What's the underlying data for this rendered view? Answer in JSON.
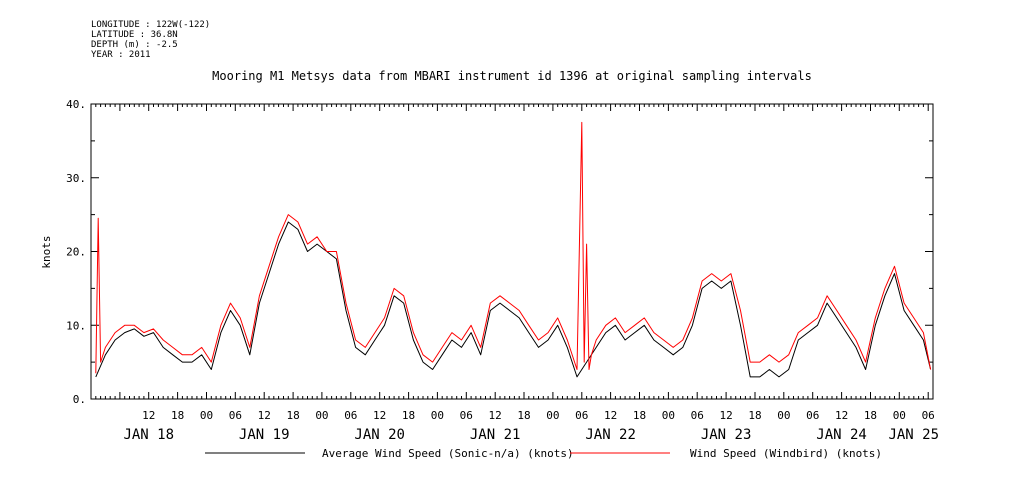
{
  "meta": {
    "longitude": "LONGITUDE : 122W(-122)",
    "latitude": "LATITUDE : 36.8N",
    "depth": "DEPTH (m) : -2.5",
    "year": "YEAR : 2011"
  },
  "chart_data": {
    "type": "line",
    "title": "Mooring M1 Metsys data from MBARI instrument id 1396 at original sampling intervals",
    "ylabel": "knots",
    "xlabel": "",
    "ylim": [
      0,
      40
    ],
    "xlim_hours": [
      408,
      583
    ],
    "y_ticks": [
      0,
      10,
      20,
      30,
      40
    ],
    "y_tick_labels": [
      "0.",
      "10.",
      "20.",
      "30.",
      "40."
    ],
    "hour_tick_labels": [
      {
        "h": 420,
        "label": "12"
      },
      {
        "h": 426,
        "label": "18"
      },
      {
        "h": 432,
        "label": "00"
      },
      {
        "h": 438,
        "label": "06"
      },
      {
        "h": 444,
        "label": "12"
      },
      {
        "h": 450,
        "label": "18"
      },
      {
        "h": 456,
        "label": "00"
      },
      {
        "h": 462,
        "label": "06"
      },
      {
        "h": 468,
        "label": "12"
      },
      {
        "h": 474,
        "label": "18"
      },
      {
        "h": 480,
        "label": "00"
      },
      {
        "h": 486,
        "label": "06"
      },
      {
        "h": 492,
        "label": "12"
      },
      {
        "h": 498,
        "label": "18"
      },
      {
        "h": 504,
        "label": "00"
      },
      {
        "h": 510,
        "label": "06"
      },
      {
        "h": 516,
        "label": "12"
      },
      {
        "h": 522,
        "label": "18"
      },
      {
        "h": 528,
        "label": "00"
      },
      {
        "h": 534,
        "label": "06"
      },
      {
        "h": 540,
        "label": "12"
      },
      {
        "h": 546,
        "label": "18"
      },
      {
        "h": 552,
        "label": "00"
      },
      {
        "h": 558,
        "label": "06"
      },
      {
        "h": 564,
        "label": "12"
      },
      {
        "h": 570,
        "label": "18"
      },
      {
        "h": 576,
        "label": "00"
      },
      {
        "h": 582,
        "label": "06"
      }
    ],
    "day_labels": [
      {
        "h": 420,
        "label": "JAN 18"
      },
      {
        "h": 444,
        "label": "JAN 19"
      },
      {
        "h": 468,
        "label": "JAN 20"
      },
      {
        "h": 492,
        "label": "JAN 21"
      },
      {
        "h": 516,
        "label": "JAN 22"
      },
      {
        "h": 540,
        "label": "JAN 23"
      },
      {
        "h": 564,
        "label": "JAN 24"
      },
      {
        "h": 579,
        "label": "JAN 25"
      }
    ],
    "series": [
      {
        "name": "Average Wind Speed (Sonic-n/a) (knots)",
        "color": "#000000",
        "x": [
          409,
          411,
          413,
          415,
          417,
          419,
          421,
          423,
          425,
          427,
          429,
          431,
          433,
          435,
          437,
          439,
          441,
          443,
          445,
          447,
          449,
          451,
          453,
          455,
          457,
          459,
          461,
          463,
          465,
          467,
          469,
          471,
          473,
          475,
          477,
          479,
          481,
          483,
          485,
          487,
          489,
          491,
          493,
          495,
          497,
          499,
          501,
          503,
          505,
          507,
          509,
          511,
          513,
          515,
          517,
          519,
          521,
          523,
          525,
          527,
          529,
          531,
          533,
          535,
          537,
          539,
          541,
          543,
          545,
          547,
          549,
          551,
          553,
          555,
          557,
          559,
          561,
          563,
          565,
          567,
          569,
          571,
          573,
          575,
          577,
          579,
          581,
          582.5
        ],
        "y": [
          3,
          6,
          8,
          9,
          9.5,
          8.5,
          9,
          7,
          6,
          5,
          5,
          6,
          4,
          9,
          12,
          10,
          6,
          13,
          17,
          21,
          24,
          23,
          20,
          21,
          20,
          19,
          12,
          7,
          6,
          8,
          10,
          14,
          13,
          8,
          5,
          4,
          6,
          8,
          7,
          9,
          6,
          12,
          13,
          12,
          11,
          9,
          7,
          8,
          10,
          7,
          3,
          5,
          7,
          9,
          10,
          8,
          9,
          10,
          8,
          7,
          6,
          7,
          10,
          15,
          16,
          15,
          16,
          10,
          3,
          3,
          4,
          3,
          4,
          8,
          9,
          10,
          13,
          11,
          9,
          7,
          4,
          10,
          14,
          17,
          12,
          10,
          8,
          4
        ]
      },
      {
        "name": "Wind Speed (Windbird) (knots)",
        "color": "#ff0000",
        "x": [
          409,
          409.5,
          410,
          411,
          413,
          415,
          417,
          419,
          421,
          423,
          425,
          427,
          429,
          431,
          433,
          435,
          437,
          439,
          441,
          443,
          445,
          447,
          449,
          451,
          453,
          455,
          457,
          459,
          461,
          463,
          465,
          467,
          469,
          471,
          473,
          475,
          477,
          479,
          481,
          483,
          485,
          487,
          489,
          491,
          493,
          495,
          497,
          499,
          501,
          503,
          505,
          507,
          509,
          510,
          510.5,
          511,
          511.5,
          512,
          513,
          515,
          517,
          519,
          521,
          523,
          525,
          527,
          529,
          531,
          533,
          535,
          537,
          539,
          541,
          543,
          545,
          547,
          549,
          551,
          553,
          555,
          557,
          559,
          561,
          563,
          565,
          567,
          569,
          571,
          573,
          575,
          577,
          579,
          581,
          582.5
        ],
        "y": [
          3.5,
          24.5,
          5,
          7,
          9,
          10,
          10,
          9,
          9.5,
          8,
          7,
          6,
          6,
          7,
          5,
          10,
          13,
          11,
          7,
          14,
          18,
          22,
          25,
          24,
          21,
          22,
          20,
          20,
          13,
          8,
          7,
          9,
          11,
          15,
          14,
          9,
          6,
          5,
          7,
          9,
          8,
          10,
          7,
          13,
          14,
          13,
          12,
          10,
          8,
          9,
          11,
          8,
          4,
          37.5,
          5,
          21,
          4,
          6,
          8,
          10,
          11,
          9,
          10,
          11,
          9,
          8,
          7,
          8,
          11,
          16,
          17,
          16,
          17,
          12,
          5,
          5,
          6,
          5,
          6,
          9,
          10,
          11,
          14,
          12,
          10,
          8,
          5,
          11,
          15,
          18,
          13,
          11,
          9,
          4
        ]
      }
    ],
    "legend_position": "bottom"
  }
}
